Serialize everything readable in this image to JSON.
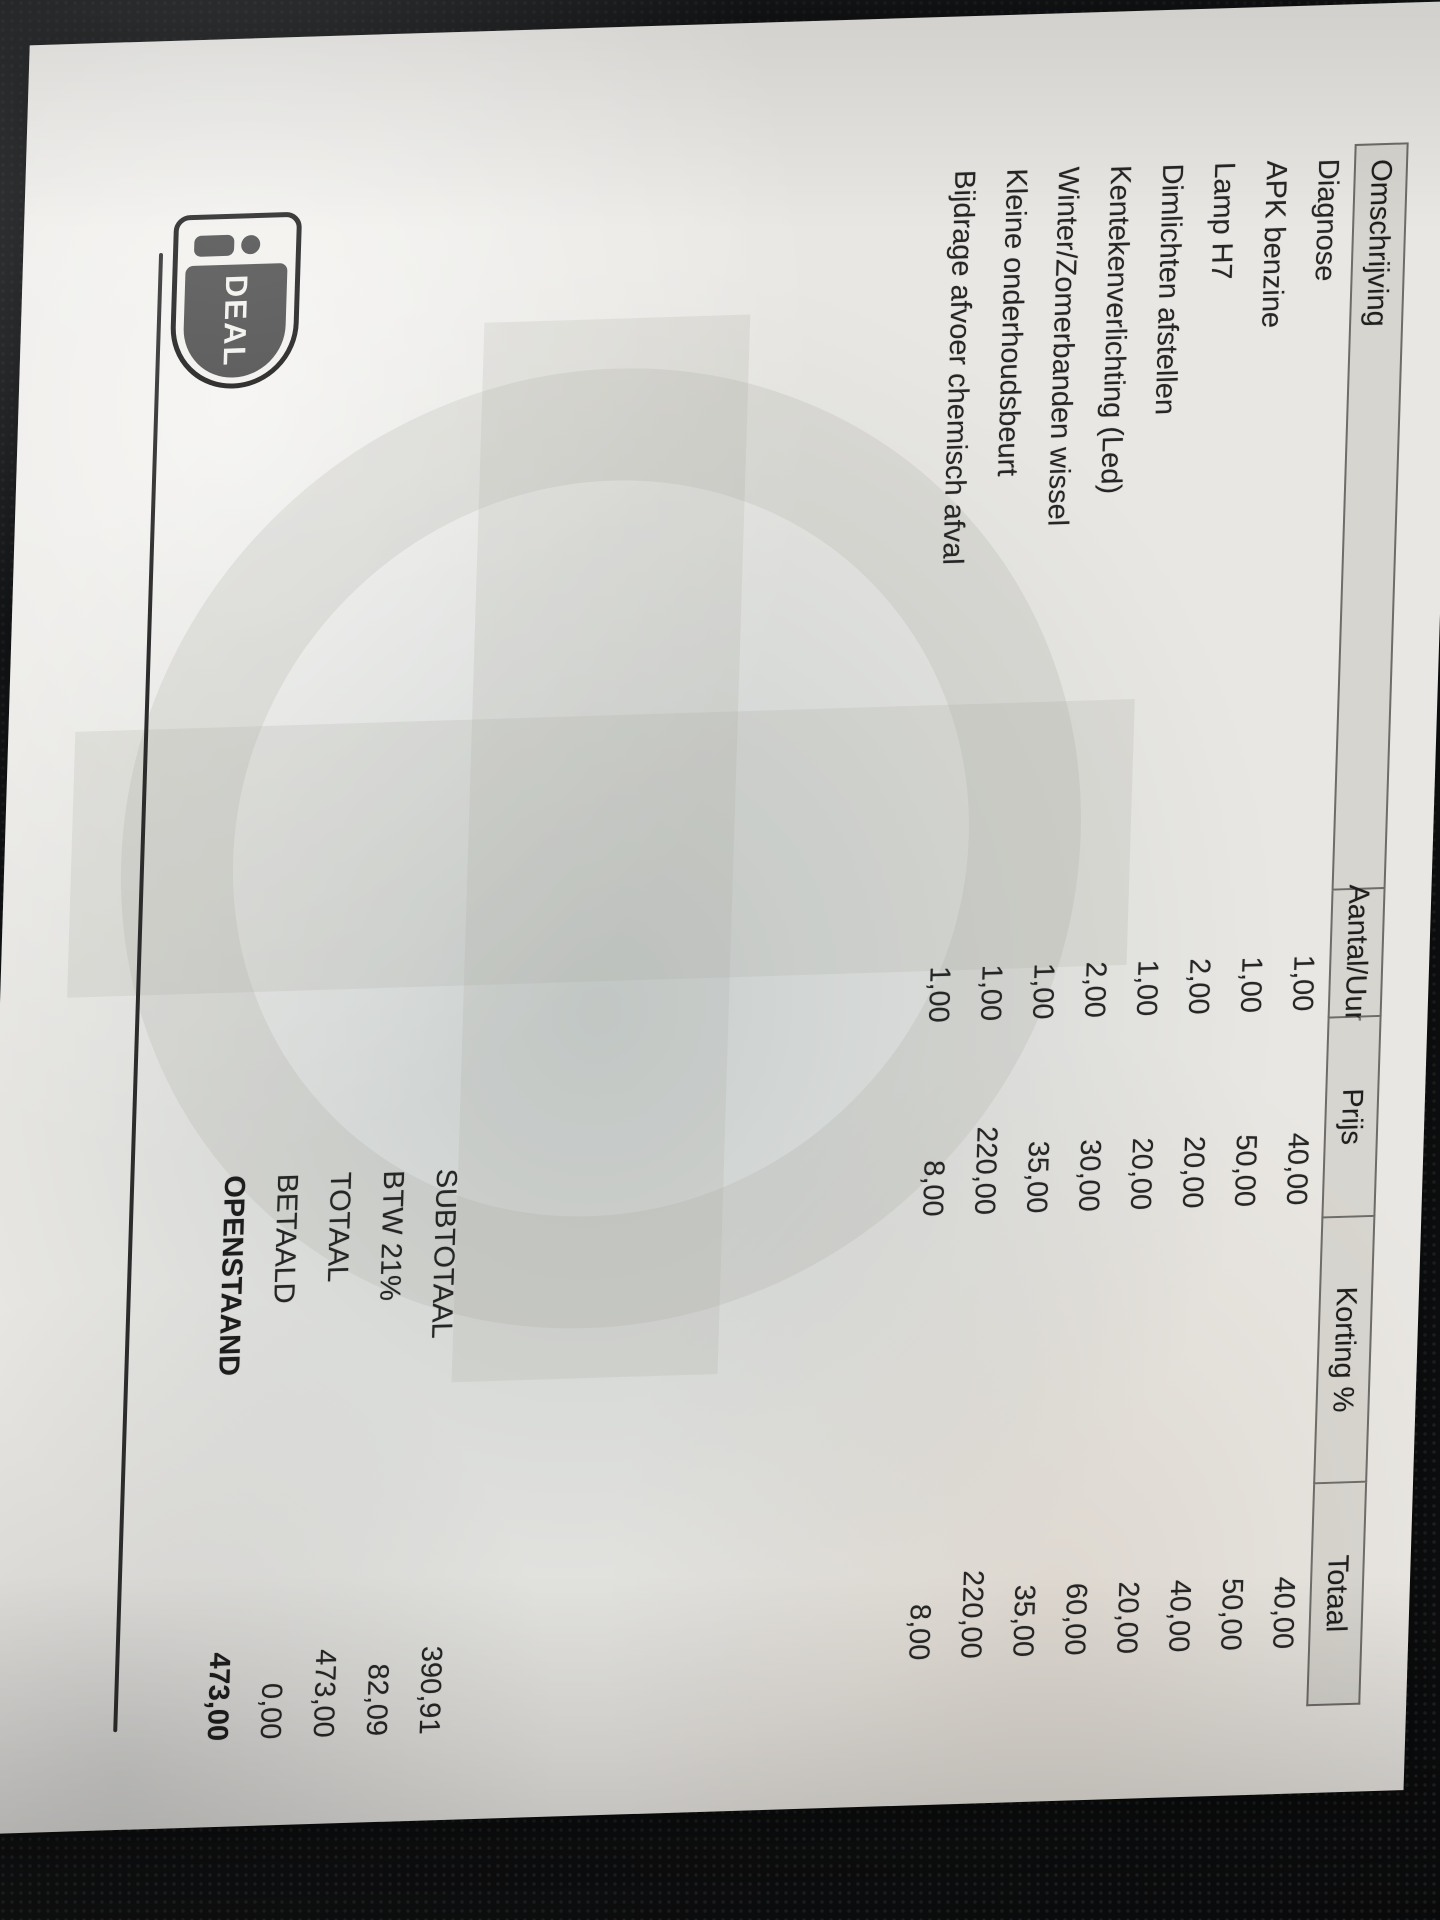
{
  "table": {
    "headers": [
      "Omschrijving",
      "Aantal/Uur",
      "Prijs",
      "Korting %",
      "Totaal"
    ],
    "rows": [
      {
        "description": "Diagnose",
        "qty": "1,00",
        "price": "40,00",
        "discount": "",
        "total": "40,00"
      },
      {
        "description": "APK benzine",
        "qty": "1,00",
        "price": "50,00",
        "discount": "",
        "total": "50,00"
      },
      {
        "description": "Lamp H7",
        "qty": "2,00",
        "price": "20,00",
        "discount": "",
        "total": "40,00"
      },
      {
        "description": "Dimlichten afstellen",
        "qty": "1,00",
        "price": "20,00",
        "discount": "",
        "total": "20,00"
      },
      {
        "description": "Kentekenverlichting (Led)",
        "qty": "2,00",
        "price": "30,00",
        "discount": "",
        "total": "60,00"
      },
      {
        "description": "Winter/Zomerbanden wissel",
        "qty": "1,00",
        "price": "35,00",
        "discount": "",
        "total": "35,00"
      },
      {
        "description": "Kleine onderhoudsbeurt",
        "qty": "1,00",
        "price": "220,00",
        "discount": "",
        "total": "220,00"
      },
      {
        "description": "Bijdrage afvoer chemisch afval",
        "qty": "1,00",
        "price": "8,00",
        "discount": "",
        "total": "8,00"
      }
    ]
  },
  "totals": [
    {
      "label": "SUBTOTAAL",
      "value": "390,91"
    },
    {
      "label": "BTW 21%",
      "value": "82,09"
    },
    {
      "label": "TOTAAL",
      "value": "473,00"
    },
    {
      "label": "BETAALD",
      "value": "0,00"
    },
    {
      "label": "OPENSTAAND",
      "value": "473,00"
    }
  ],
  "payment_logo": {
    "brand": "iDEAL",
    "deal_text": "DEAL"
  },
  "colors": {
    "background_fabric": "#141517",
    "paper": "#e9e7e3",
    "paper_shadow_tint": "#7c969e",
    "table_border": "#6e6c68",
    "header_fill": "#c9c6c0",
    "text": "#262626",
    "watermark": "#aaa8a0",
    "logo_dark_gray": "#4e4e4e"
  }
}
